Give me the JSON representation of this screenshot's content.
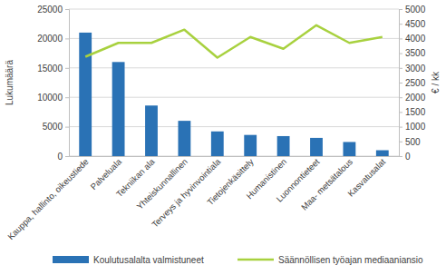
{
  "chart_data": {
    "type": "bar",
    "categories": [
      "Kauppa, hallinto, oikeustiede",
      "Palveluala",
      "Tekniikan ala",
      "Yhteiskunnallinen",
      "Terveys ja hyvinvointiala",
      "Tietojenkäsittely",
      "Humanistinen",
      "Luonnontieteet",
      "Maa- metsätalous",
      "Kasvatusalat"
    ],
    "series": [
      {
        "name": "Koulutusalalta valmistuneet",
        "type": "bar",
        "color": "#2a72b5",
        "values": [
          21000,
          16000,
          8600,
          6000,
          4200,
          3600,
          3400,
          3100,
          2400,
          1000
        ]
      },
      {
        "name": "Säännöllisen työajan mediaaniansio",
        "type": "line",
        "color": "#a8d13f",
        "axis": "y2",
        "values": [
          3380,
          3850,
          3850,
          4300,
          3350,
          4050,
          3650,
          4450,
          3850,
          4050
        ]
      }
    ],
    "y_label": "Lukumäärä",
    "y2_label": "€ / kk",
    "ylim": [
      0,
      25000
    ],
    "yticks": [
      0,
      5000,
      10000,
      15000,
      20000,
      25000
    ],
    "y2lim": [
      0,
      5000
    ],
    "y2ticks": [
      0,
      500,
      1000,
      1500,
      2000,
      2500,
      3000,
      3500,
      4000,
      4500,
      5000
    ],
    "grid": true,
    "legend": "bottom"
  }
}
